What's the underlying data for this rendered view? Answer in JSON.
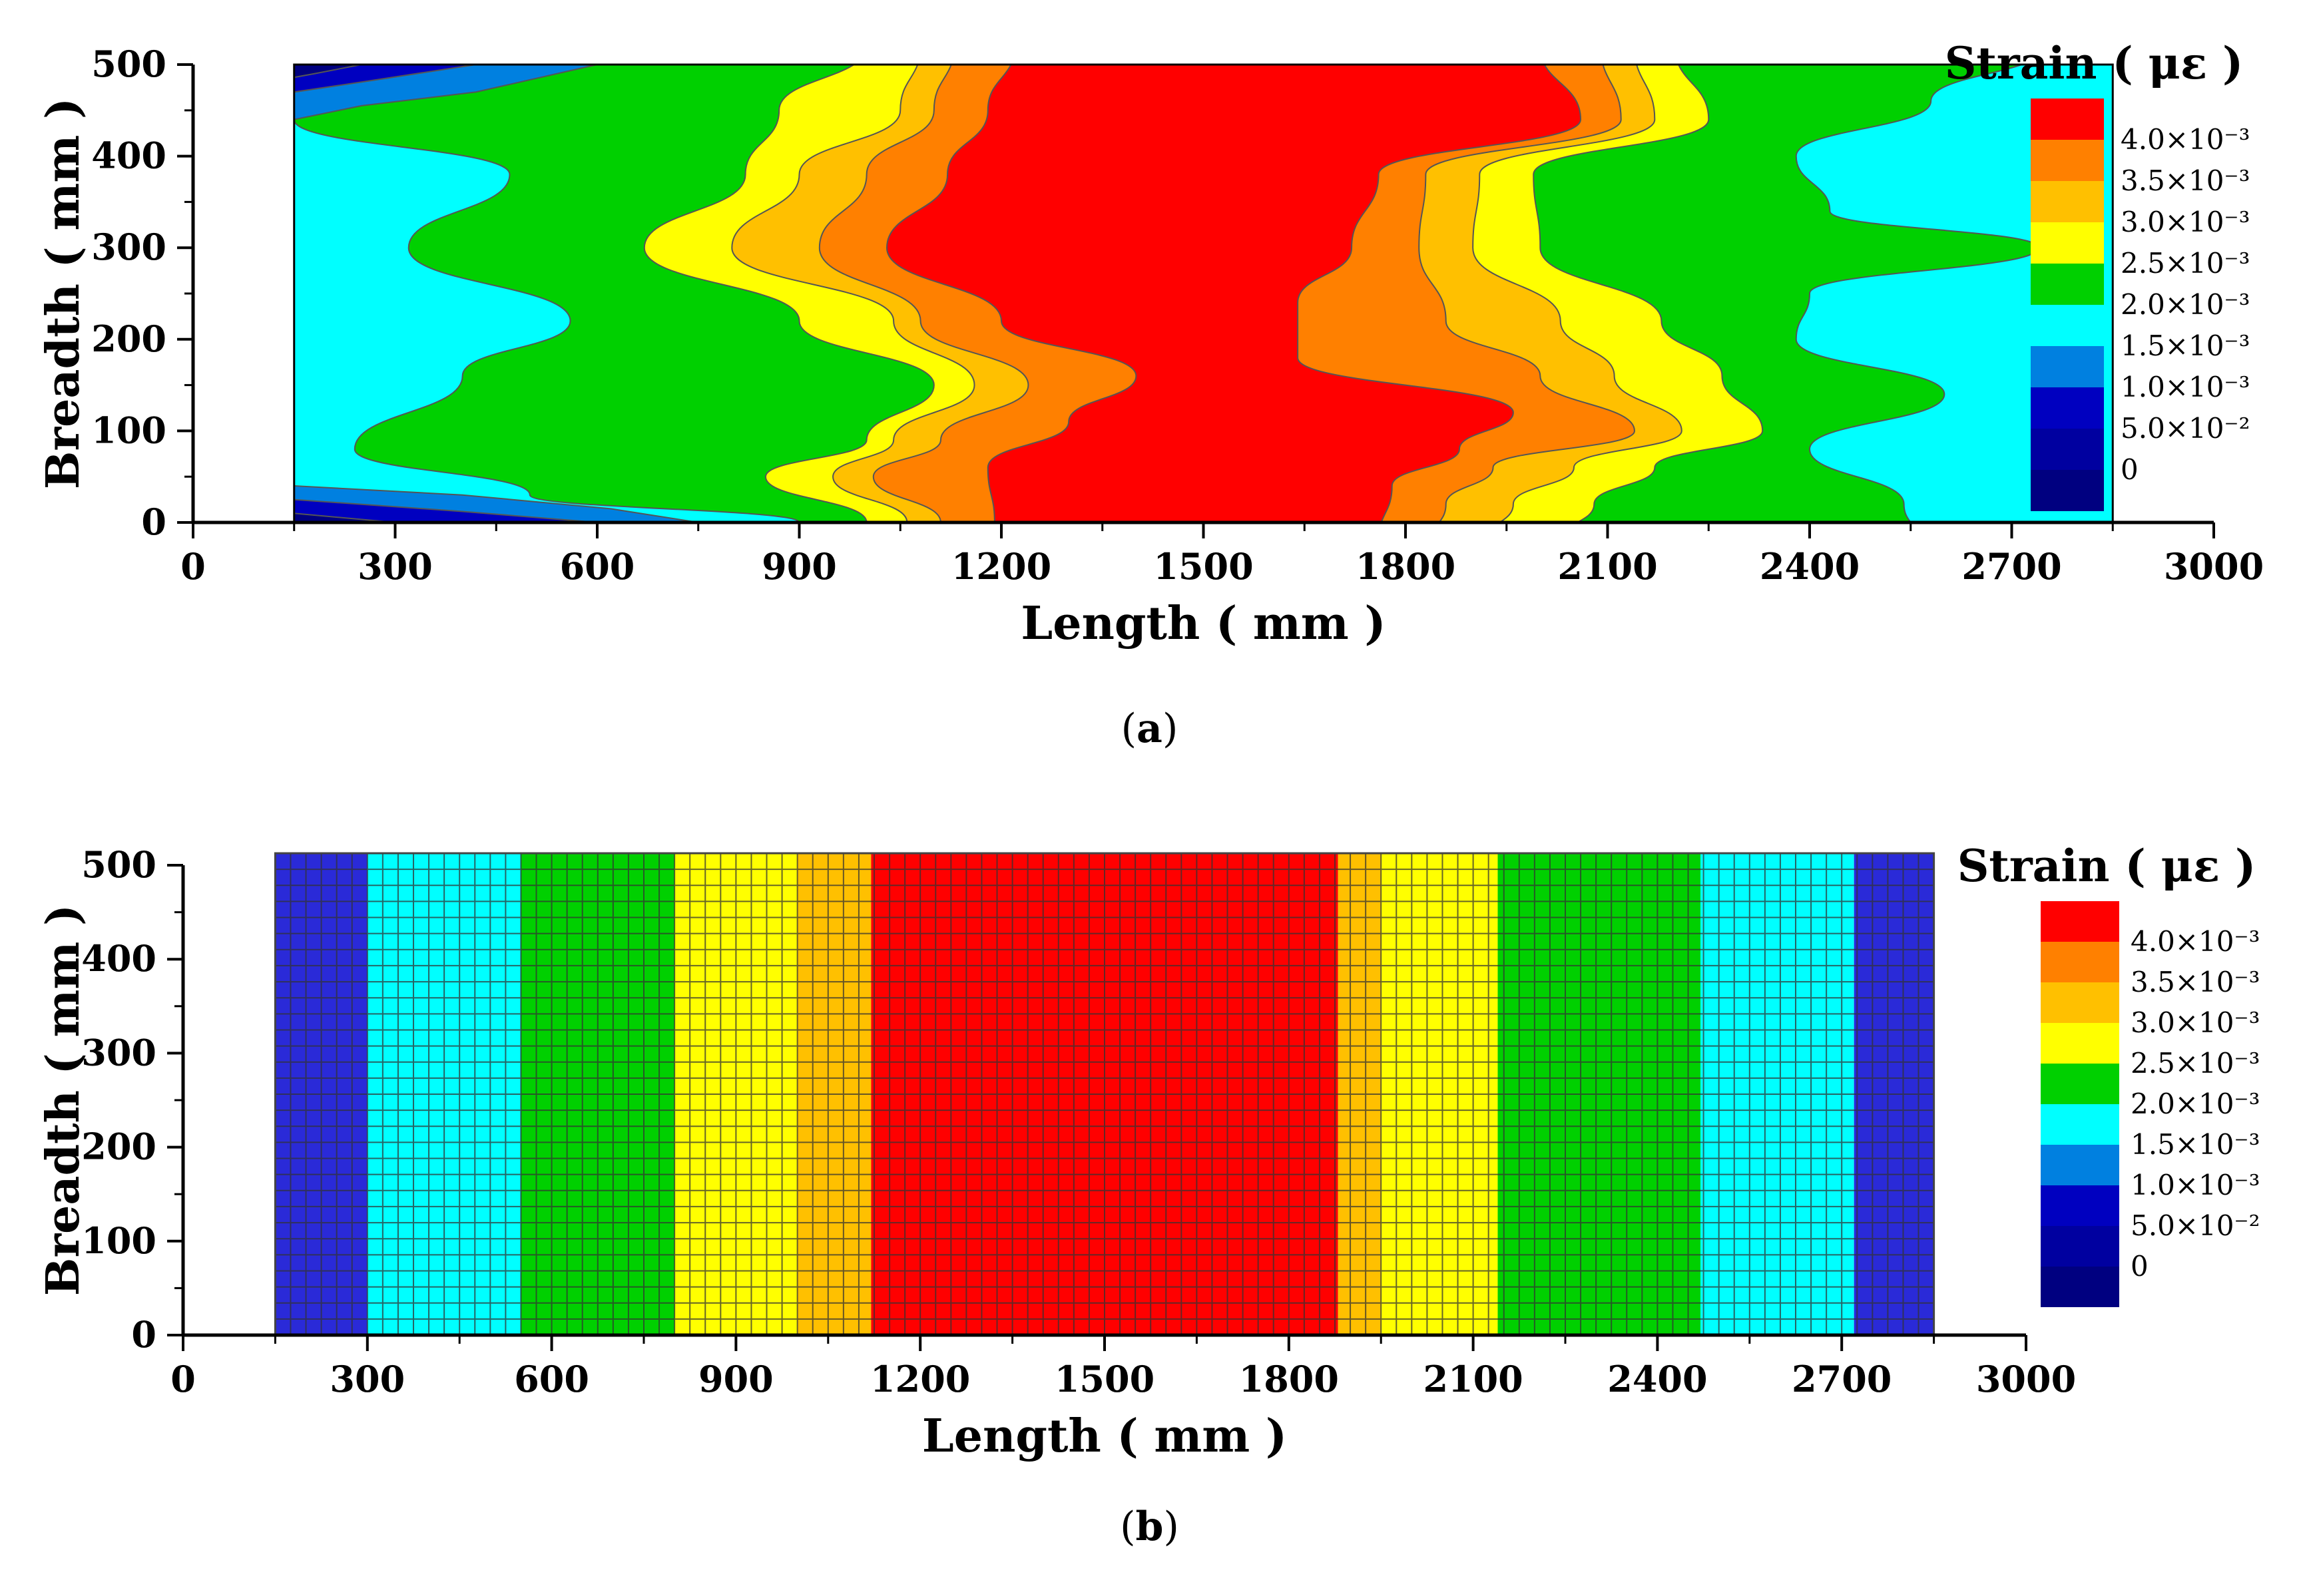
{
  "chart_data": [
    {
      "type": "contour",
      "panel": "a",
      "caption": "a",
      "xlabel": "Length ( mm )",
      "ylabel": "Breadth ( mm )",
      "xlim": [
        0,
        3000
      ],
      "ylim": [
        0,
        500
      ],
      "xticks": [
        0,
        300,
        600,
        900,
        1200,
        1500,
        1800,
        2100,
        2400,
        2700,
        3000
      ],
      "yticks": [
        0,
        100,
        200,
        300,
        400,
        500
      ],
      "domain_x": [
        150,
        2850
      ],
      "legend_title": "Strain ( με )",
      "levels": [
        {
          "label": "4.0×10⁻³",
          "color": "#ff0000"
        },
        {
          "label": "3.5×10⁻³",
          "color": "#ff8000"
        },
        {
          "label": "3.0×10⁻³",
          "color": "#ffc000"
        },
        {
          "label": "2.5×10⁻³",
          "color": "#ffff00"
        },
        {
          "label": "2.0×10⁻³",
          "color": "#00d000"
        },
        {
          "label": "1.5×10⁻³",
          "color": "#00ffff"
        },
        {
          "label": "1.0×10⁻³",
          "color": "#0080e0"
        },
        {
          "label": "5.0×10⁻²",
          "color": "#0000c0"
        },
        {
          "label": "0",
          "color": "#0000a0"
        },
        {
          "label": "",
          "color": "#000080"
        }
      ],
      "regions": [
        {
          "level": "4.0×10⁻³",
          "x_range": [
            1200,
            1980
          ]
        },
        {
          "level": "3.5×10⁻³",
          "x_range": [
            1050,
            2100
          ]
        },
        {
          "level": "3.0×10⁻³",
          "x_range": [
            950,
            2200
          ]
        },
        {
          "level": "2.5×10⁻³",
          "x_range": [
            800,
            2400
          ]
        },
        {
          "level": "2.0×10⁻³",
          "x_range": [
            250,
            2650
          ]
        },
        {
          "level": "1.5×10⁻³",
          "x_range": [
            150,
            2850
          ]
        }
      ]
    },
    {
      "type": "heatmap",
      "panel": "b",
      "caption": "b",
      "xlabel": "Length ( mm )",
      "ylabel": "Breadth ( mm )",
      "xlim": [
        0,
        3000
      ],
      "ylim": [
        0,
        500
      ],
      "xticks": [
        0,
        300,
        600,
        900,
        1200,
        1500,
        1800,
        2100,
        2400,
        2700,
        3000
      ],
      "yticks": [
        0,
        100,
        200,
        300,
        400,
        500
      ],
      "domain_x": [
        150,
        2850
      ],
      "grid": true,
      "legend_title": "Strain ( με )",
      "levels": [
        {
          "label": "4.0×10⁻³",
          "color": "#ff0000"
        },
        {
          "label": "3.5×10⁻³",
          "color": "#ff8000"
        },
        {
          "label": "3.0×10⁻³",
          "color": "#ffc000"
        },
        {
          "label": "2.5×10⁻³",
          "color": "#ffff00"
        },
        {
          "label": "2.0×10⁻³",
          "color": "#00d000"
        },
        {
          "label": "1.5×10⁻³",
          "color": "#00ffff"
        },
        {
          "label": "1.0×10⁻³",
          "color": "#0080e0"
        },
        {
          "label": "5.0×10⁻²",
          "color": "#0000c0"
        },
        {
          "label": "0",
          "color": "#0000a0"
        },
        {
          "label": "",
          "color": "#000080"
        }
      ],
      "bands": [
        {
          "x_range": [
            150,
            300
          ],
          "color": "#2a2ad8"
        },
        {
          "x_range": [
            300,
            550
          ],
          "color": "#00ffff"
        },
        {
          "x_range": [
            550,
            800
          ],
          "color": "#00d000"
        },
        {
          "x_range": [
            800,
            1000
          ],
          "color": "#ffff00"
        },
        {
          "x_range": [
            1000,
            1120
          ],
          "color": "#ffc000"
        },
        {
          "x_range": [
            1120,
            1880
          ],
          "color": "#ff0000"
        },
        {
          "x_range": [
            1880,
            1950
          ],
          "color": "#ffc000"
        },
        {
          "x_range": [
            1950,
            2140
          ],
          "color": "#ffff00"
        },
        {
          "x_range": [
            2140,
            2470
          ],
          "color": "#00d000"
        },
        {
          "x_range": [
            2470,
            2720
          ],
          "color": "#00ffff"
        },
        {
          "x_range": [
            2720,
            2850
          ],
          "color": "#2a2ad8"
        }
      ]
    }
  ],
  "captions": {
    "a": "a",
    "b": "b"
  }
}
